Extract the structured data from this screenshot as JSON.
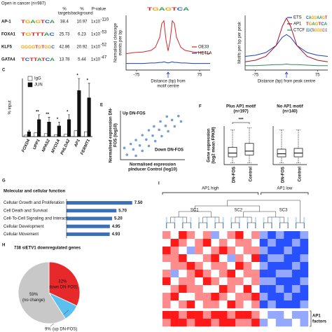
{
  "motif_table": {
    "title": "Open in cancer (n=987)",
    "headers": [
      [
        "%",
        "targets"
      ],
      [
        "%",
        "background"
      ],
      [
        "P-value"
      ]
    ],
    "rows": [
      {
        "name": "AP-1",
        "motif": "TGAGTCA",
        "targets": 38.4,
        "background": 10.97,
        "p_value": {
          "base": "1x10",
          "exponent": "-110"
        }
      },
      {
        "name": "FOXA1",
        "motif": "TGTTTAC",
        "targets": 25.73,
        "background": 6.23,
        "p_value": {
          "base": "1x10",
          "exponent": "-53"
        }
      },
      {
        "name": "KLF5",
        "motif": "GGGGTGTGGC",
        "targets": 42.86,
        "background": 20.92,
        "p_value": {
          "base": "1x10",
          "exponent": "-52"
        }
      },
      {
        "name": "GATA4",
        "motif": "TCTTATCA",
        "targets": 13.78,
        "background": 5.44,
        "p_value": {
          "base": "1x10",
          "exponent": "-47"
        }
      }
    ]
  },
  "chart_data": [
    {
      "type": "line",
      "motif": "TGAGTCA",
      "ylabel": [
        "Normalised cleavage",
        "events per bp"
      ],
      "xlabel": [
        "Distance (bp) from",
        "motif centre"
      ],
      "x": [
        -100,
        -80,
        -60,
        -40,
        -30,
        -20,
        -15,
        -10,
        -5,
        0,
        5,
        10,
        15,
        20,
        30,
        40,
        60,
        80,
        100
      ],
      "series": [
        {
          "name": "OE33",
          "color": "#d62728",
          "values": [
            0.3,
            0.32,
            0.33,
            0.36,
            0.42,
            0.6,
            0.85,
            0.9,
            0.55,
            0.35,
            0.55,
            0.9,
            0.85,
            0.6,
            0.42,
            0.36,
            0.33,
            0.32,
            0.3
          ]
        },
        {
          "name": "HET1A",
          "color": "#1f3fbf",
          "values": [
            0.12,
            0.12,
            0.12,
            0.13,
            0.13,
            0.14,
            0.14,
            0.15,
            0.14,
            0.13,
            0.14,
            0.15,
            0.14,
            0.14,
            0.13,
            0.13,
            0.12,
            0.12,
            0.12
          ]
        }
      ],
      "xlim": [
        -100,
        100
      ],
      "xticks": [
        -75,
        75
      ],
      "ylim": [
        0,
        1
      ],
      "legend": "right"
    },
    {
      "type": "line",
      "ylabel": [
        "Motifs per bp per peak"
      ],
      "xlabel": [
        "Distance (bp) from peak centre"
      ],
      "x": [
        -100,
        -75,
        -50,
        -25,
        -10,
        0,
        10,
        25,
        50,
        75,
        100
      ],
      "series": [
        {
          "name": "ETS",
          "motif": "CAGGAAGT",
          "color": "#1f3fbf",
          "values": [
            0.25,
            0.27,
            0.32,
            0.45,
            0.6,
            0.65,
            0.6,
            0.45,
            0.32,
            0.27,
            0.25
          ]
        },
        {
          "name": "AP1",
          "motif": "TGAGTCA",
          "color": "#b0102a",
          "values": [
            0.15,
            0.18,
            0.25,
            0.45,
            0.8,
            0.95,
            0.8,
            0.45,
            0.25,
            0.18,
            0.15
          ]
        },
        {
          "name": "CTCF",
          "motif": "CCACTAGGGGGCGC",
          "color": "#2e8b57",
          "values": [
            0.08,
            0.08,
            0.09,
            0.1,
            0.1,
            0.11,
            0.1,
            0.1,
            0.09,
            0.08,
            0.08
          ]
        }
      ],
      "xlim": [
        -100,
        100
      ],
      "xticks": [
        -75,
        75
      ],
      "ylim": [
        0,
        1
      ],
      "legend": "upper right"
    },
    {
      "type": "bar",
      "panel": "C",
      "ylabel": "% input",
      "categories": [
        "FOXD4",
        "UPP1",
        "NPAS2",
        "MYO1A",
        "PHLDA2",
        "AP1",
        "FERMT1"
      ],
      "series": [
        {
          "name": "IgG",
          "color": "#ffffff",
          "values": [
            0.003,
            0.008,
            0.006,
            0.004,
            0.005,
            0.012,
            0.01
          ]
        },
        {
          "name": "JUN",
          "color": "#111111",
          "values": [
            0.01,
            0.035,
            0.03,
            0.022,
            0.035,
            0.095,
            0.08
          ],
          "errors": [
            0.003,
            0.01,
            0.01,
            0.008,
            0.01,
            0.025,
            0.03
          ]
        }
      ],
      "ylim": [
        0,
        0.12
      ],
      "value_annotations": [
        null,
        "**",
        "**",
        "*",
        "*",
        "*",
        "*"
      ]
    },
    {
      "type": "scatter",
      "panel": "E",
      "ylabel": [
        "Normalised expression DN-",
        "FOS (log10)"
      ],
      "xlabel": [
        "Normalised expression",
        "pInducer Control (log10)"
      ],
      "x": [
        0.5,
        1,
        1.5,
        2,
        2.5,
        3,
        3.5,
        4,
        4.5,
        0.3,
        0.8,
        1.2,
        1.7,
        2.2,
        2.6,
        3.1,
        3.6,
        1.2,
        1.7,
        2.2,
        2.7,
        3.2,
        3.7,
        4.2,
        4.7
      ],
      "y": [
        0.5,
        1.05,
        1.45,
        2.05,
        2.45,
        3.05,
        3.45,
        4.05,
        4.45,
        1.2,
        1.6,
        2,
        2.5,
        3,
        3.4,
        3.9,
        4.4,
        0.4,
        0.9,
        1.4,
        1.9,
        2.4,
        2.9,
        3.4,
        3.9
      ],
      "color": "#5a8fc8",
      "xlim": [
        0,
        5
      ],
      "ylim": [
        0,
        5
      ],
      "annotations": [
        {
          "text": "Up DN-FOS",
          "color": "#2233aa"
        },
        {
          "text": "Down DN-FOS",
          "color": "#cc2222"
        }
      ]
    },
    {
      "type": "box",
      "panel": "F",
      "ylabel": [
        "Gene expression",
        "(log2 mean FPKM)"
      ],
      "ylim": [
        0,
        10
      ],
      "annotation": "***",
      "groups": [
        {
          "title": [
            "Plus AP1 motif",
            "(n=197)"
          ],
          "categories": [
            "DN-FOS",
            "Control"
          ],
          "boxes": [
            {
              "min": 0.5,
              "q1": 2,
              "median": 3,
              "q3": 4.5,
              "max": 9
            },
            {
              "min": 0.5,
              "q1": 2.5,
              "median": 3.5,
              "q3": 5.5,
              "max": 9.5
            }
          ]
        },
        {
          "title": [
            "No AP1 motif",
            "(n=140)"
          ],
          "categories": [
            "DN-FOS",
            "Control"
          ],
          "boxes": [
            {
              "min": 0.5,
              "q1": 2,
              "median": 2.8,
              "q3": 4,
              "max": 9
            },
            {
              "min": 0.5,
              "q1": 2,
              "median": 3,
              "q3": 4.2,
              "max": 9
            }
          ]
        }
      ]
    },
    {
      "type": "hbar",
      "panel": "G",
      "title": "Molecular and cellular function",
      "categories": [
        "Cellular Growth and Proliferation",
        "Cell Death and Survival",
        "Cell-To-Cell Signaling and Interaction",
        "Cellular Development",
        "Cellular Movement"
      ],
      "values": [
        7.5,
        5.7,
        5.2,
        4.95,
        4.93
      ],
      "value_labels": [
        "7.50",
        "5.70",
        "5.20",
        "4.95",
        "4.93"
      ],
      "color": "#3b6fb6",
      "xlim": [
        0,
        8
      ]
    },
    {
      "type": "pie",
      "panel": "H",
      "title": "738 siETV1 downregulated genes",
      "categories": [
        "(down DN-FOS)",
        "(up DN-FOS)",
        "(no change)"
      ],
      "values": [
        32,
        9,
        59
      ],
      "value_labels": [
        "32%",
        "9%",
        "59%"
      ],
      "colors": [
        "#e8292b",
        "#5bc0f0",
        "#c8c8c8"
      ]
    },
    {
      "type": "heatmap",
      "panel": "I",
      "groups": [
        "AP1 high",
        "AP1 low"
      ],
      "clusters": [
        "SC1",
        "SC2",
        "SC3"
      ],
      "zlim": [
        -2,
        2
      ],
      "matrix": [
        [
          1,
          0,
          2,
          1,
          0,
          1,
          -1,
          0,
          1,
          2,
          0,
          1,
          -1,
          -2,
          -1,
          -2,
          -2,
          -1
        ],
        [
          0,
          2,
          1,
          0,
          1,
          2,
          0,
          1,
          0,
          1,
          1,
          0,
          -2,
          -1,
          -2,
          -2,
          -1,
          -2
        ],
        [
          2,
          1,
          0,
          -1,
          1,
          0,
          1,
          2,
          1,
          0,
          1,
          1,
          -1,
          -2,
          -2,
          -1,
          -2,
          -2
        ],
        [
          1,
          1,
          2,
          0,
          0,
          1,
          2,
          0,
          -1,
          1,
          0,
          2,
          -2,
          -1,
          -1,
          -2,
          -2,
          -1
        ],
        [
          0,
          1,
          1,
          2,
          1,
          0,
          1,
          1,
          0,
          2,
          1,
          0,
          -1,
          -2,
          -2,
          -2,
          -1,
          -2
        ],
        [
          1,
          -1,
          0,
          1,
          2,
          1,
          0,
          1,
          2,
          0,
          1,
          1,
          -2,
          -2,
          -1,
          -1,
          -2,
          -2
        ],
        [
          2,
          0,
          1,
          1,
          0,
          2,
          1,
          0,
          1,
          1,
          0,
          1,
          -1,
          -1,
          -2,
          -2,
          -2,
          -1
        ],
        [
          0,
          1,
          2,
          1,
          1,
          0,
          0,
          2,
          1,
          0,
          2,
          0,
          -2,
          -2,
          -1,
          -2,
          -1,
          -2
        ],
        [
          1,
          2,
          0,
          0,
          1,
          1,
          2,
          1,
          0,
          1,
          1,
          2,
          -1,
          -2,
          -2,
          -1,
          -2,
          -2
        ],
        [
          1,
          0,
          1,
          2,
          0,
          1,
          1,
          0,
          2,
          1,
          0,
          1,
          -2,
          -1,
          -2,
          -2,
          -2,
          -1
        ]
      ],
      "factors": {
        "label": [
          "AP1",
          "factors"
        ],
        "matrix": [
          [
            2,
            2,
            1,
            2,
            2,
            1,
            2,
            2,
            1,
            2,
            2,
            1,
            0,
            -1,
            -1,
            0,
            -1,
            -1
          ],
          [
            1,
            2,
            2,
            1,
            2,
            2,
            1,
            2,
            2,
            1,
            1,
            2,
            -1,
            0,
            -1,
            -1,
            0,
            -1
          ]
        ]
      }
    }
  ]
}
